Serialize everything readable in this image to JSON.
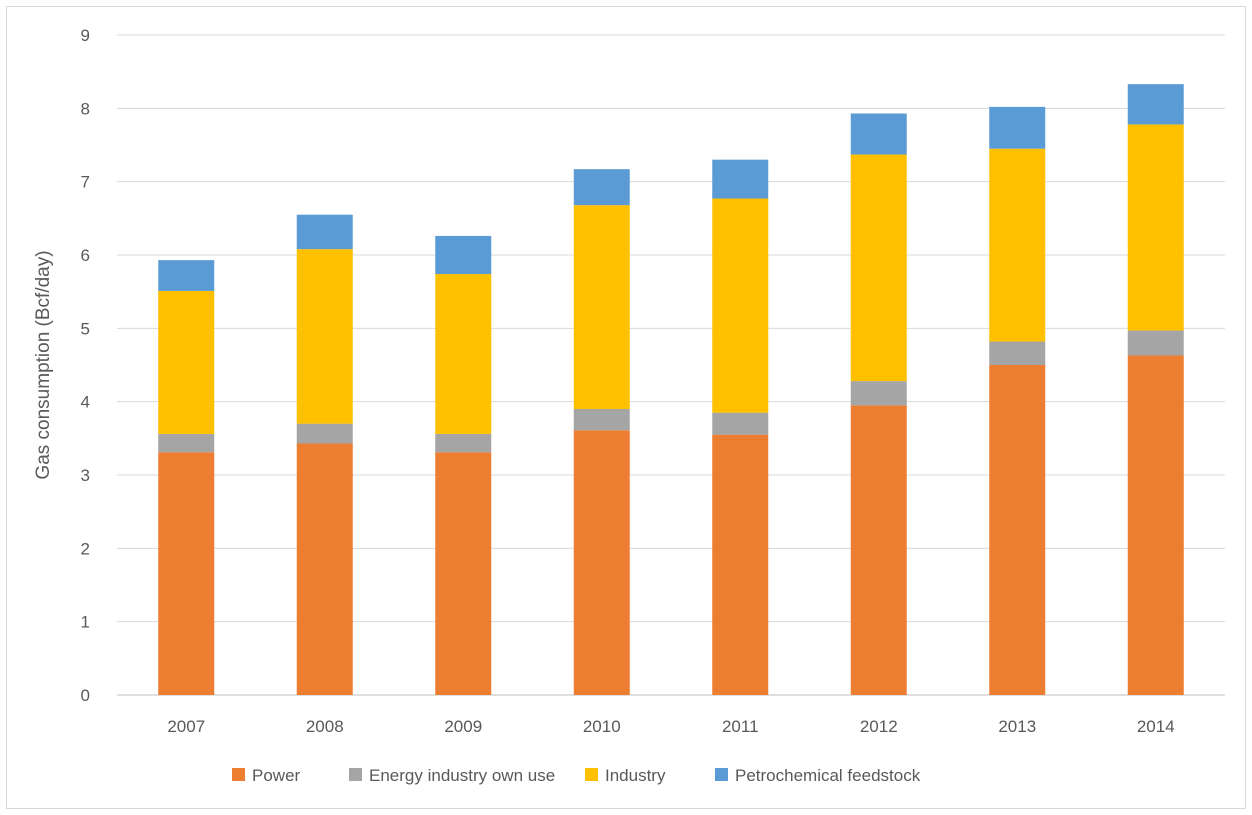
{
  "chart_data": {
    "type": "bar",
    "stacked": true,
    "title": "",
    "xlabel": "",
    "ylabel": "Gas consumption (Bcf/day)",
    "ylim": [
      0,
      9
    ],
    "yticks": [
      0,
      1,
      2,
      3,
      4,
      5,
      6,
      7,
      8,
      9
    ],
    "grid": true,
    "legend_position": "bottom",
    "categories": [
      "2007",
      "2008",
      "2009",
      "2010",
      "2011",
      "2012",
      "2013",
      "2014"
    ],
    "series": [
      {
        "name": "Power",
        "color": "#ED7D31",
        "values": [
          3.31,
          3.43,
          3.31,
          3.61,
          3.55,
          3.95,
          4.5,
          4.63
        ]
      },
      {
        "name": "Energy industry own use",
        "color": "#A5A5A5",
        "values": [
          0.25,
          0.27,
          0.25,
          0.29,
          0.3,
          0.33,
          0.32,
          0.34
        ]
      },
      {
        "name": "Industry",
        "color": "#FFC000",
        "values": [
          1.95,
          2.38,
          2.18,
          2.78,
          2.92,
          3.09,
          2.63,
          2.81
        ]
      },
      {
        "name": "Petrochemical feedstock",
        "color": "#5B9BD5",
        "values": [
          0.42,
          0.47,
          0.52,
          0.49,
          0.53,
          0.56,
          0.57,
          0.55
        ]
      }
    ]
  }
}
